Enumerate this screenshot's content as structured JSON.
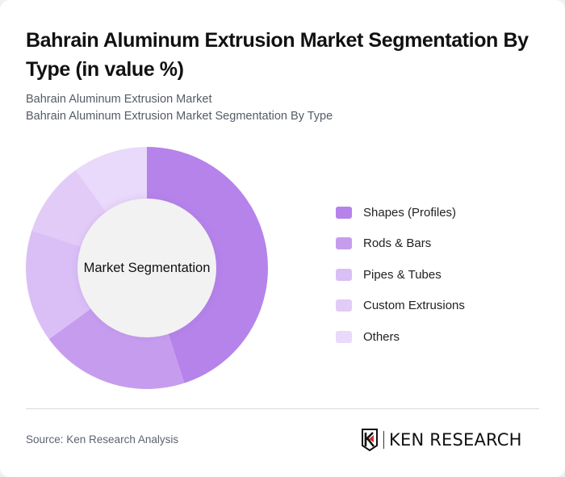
{
  "title": "Bahrain Aluminum Extrusion Market Segmentation By Type (in value %)",
  "subtitle": {
    "line1": "Bahrain Aluminum Extrusion Market",
    "line2": "Bahrain Aluminum Extrusion Market Segmentation By Type"
  },
  "center_label": "Market Segmentation",
  "legend": [
    {
      "label": "Shapes (Profiles)",
      "color": "#B583EA"
    },
    {
      "label": "Rods & Bars",
      "color": "#C69DEE"
    },
    {
      "label": "Pipes & Tubes",
      "color": "#DABFF6"
    },
    {
      "label": "Custom Extrusions",
      "color": "#E2CCF7"
    },
    {
      "label": "Others",
      "color": "#E9D9FA"
    }
  ],
  "footer": {
    "source": "Source: Ken Research Analysis",
    "logo_text": "KEN RESEARCH"
  },
  "colors": {
    "center_fill": "#F2F2F2",
    "accent_red": "#D32F2F"
  },
  "chart_data": {
    "type": "pie",
    "variant": "donut",
    "title": "Bahrain Aluminum Extrusion Market Segmentation By Type (in value %)",
    "center_label": "Market Segmentation",
    "categories": [
      "Shapes (Profiles)",
      "Rods & Bars",
      "Pipes & Tubes",
      "Custom Extrusions",
      "Others"
    ],
    "values": [
      45,
      20,
      15,
      10,
      10
    ],
    "unit": "%",
    "colors": [
      "#B583EA",
      "#C69DEE",
      "#DABFF6",
      "#E2CCF7",
      "#E9D9FA"
    ],
    "start_angle_deg": 0,
    "direction": "clockwise",
    "legend_position": "right",
    "data_labels": false
  }
}
